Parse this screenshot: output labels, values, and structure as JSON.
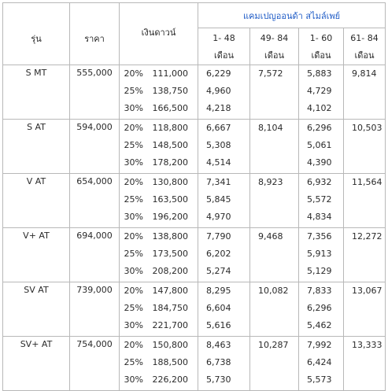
{
  "headers": {
    "model": "รุ่น",
    "price": "ราคา",
    "down": "เงินดาวน์",
    "campaign": "แคมเปญออนด้า สไมล์เพย์",
    "periods": [
      {
        "range": "1- 48",
        "unit": "เดือน"
      },
      {
        "range": "49- 84",
        "unit": "เดือน"
      },
      {
        "range": "1- 60",
        "unit": "เดือน"
      },
      {
        "range": "61- 84",
        "unit": "เดือน"
      }
    ]
  },
  "rows": [
    {
      "model": "S MT",
      "price": "555,000",
      "pcts": [
        "20%",
        "25%",
        "30%"
      ],
      "downs": [
        "111,000",
        "138,750",
        "166,500"
      ],
      "p1": [
        "6,229",
        "4,960",
        "4,218"
      ],
      "p2": "7,572",
      "p3": [
        "5,883",
        "4,729",
        "4,102"
      ],
      "p4": "9,814"
    },
    {
      "model": "S AT",
      "price": "594,000",
      "pcts": [
        "20%",
        "25%",
        "30%"
      ],
      "downs": [
        "118,800",
        "148,500",
        "178,200"
      ],
      "p1": [
        "6,667",
        "5,308",
        "4,514"
      ],
      "p2": "8,104",
      "p3": [
        "6,296",
        "5,061",
        "4,390"
      ],
      "p4": "10,503"
    },
    {
      "model": "V AT",
      "price": "654,000",
      "pcts": [
        "20%",
        "25%",
        "30%"
      ],
      "downs": [
        "130,800",
        "163,500",
        "196,200"
      ],
      "p1": [
        "7,341",
        "5,845",
        "4,970"
      ],
      "p2": "8,923",
      "p3": [
        "6,932",
        "5,572",
        "4,834"
      ],
      "p4": "11,564"
    },
    {
      "model": "V+ AT",
      "price": "694,000",
      "pcts": [
        "20%",
        "25%",
        "30%"
      ],
      "downs": [
        "138,800",
        "173,500",
        "208,200"
      ],
      "p1": [
        "7,790",
        "6,202",
        "5,274"
      ],
      "p2": "9,468",
      "p3": [
        "7,356",
        "5,913",
        "5,129"
      ],
      "p4": "12,272"
    },
    {
      "model": "SV AT",
      "price": "739,000",
      "pcts": [
        "20%",
        "25%",
        "30%"
      ],
      "downs": [
        "147,800",
        "184,750",
        "221,700"
      ],
      "p1": [
        "8,295",
        "6,604",
        "5,616"
      ],
      "p2": "10,082",
      "p3": [
        "7,833",
        "6,296",
        "5,462"
      ],
      "p4": "13,067"
    },
    {
      "model": "SV+ AT",
      "price": "754,000",
      "pcts": [
        "20%",
        "25%",
        "30%"
      ],
      "downs": [
        "150,800",
        "188,500",
        "226,200"
      ],
      "p1": [
        "8,463",
        "6,738",
        "5,730"
      ],
      "p2": "10,287",
      "p3": [
        "7,992",
        "6,424",
        "5,573"
      ],
      "p4": "13,333"
    }
  ]
}
